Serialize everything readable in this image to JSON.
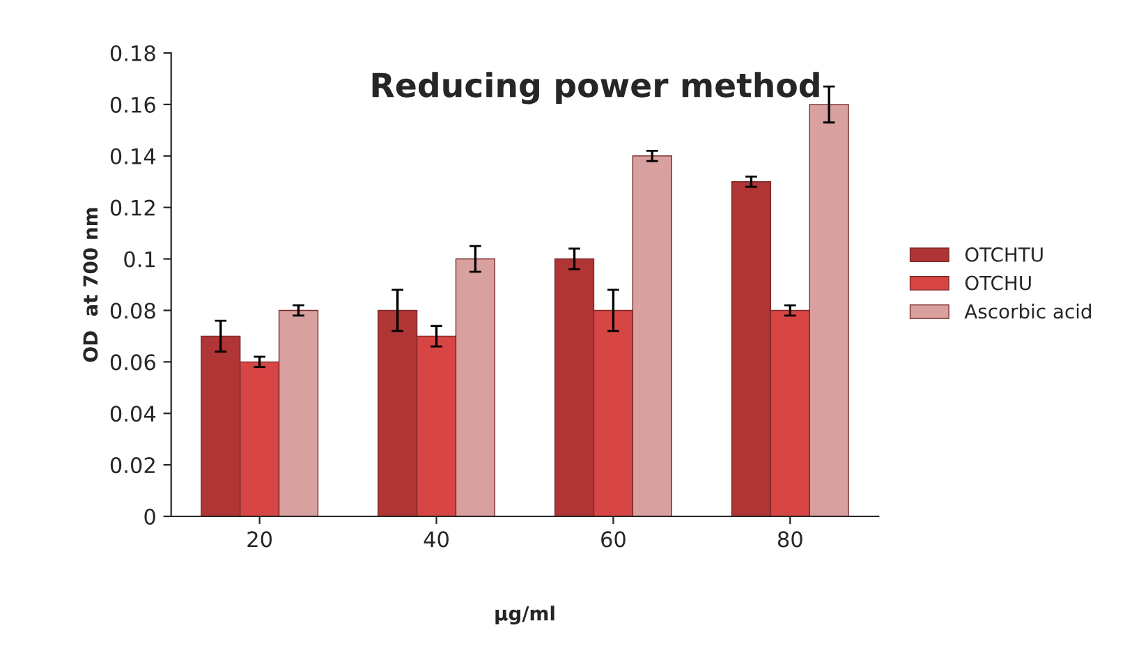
{
  "chart_data": {
    "type": "bar",
    "title": "Reducing power method",
    "xlabel": "µg/ml",
    "ylabel": "OD  at 700 nm",
    "categories": [
      "20",
      "40",
      "60",
      "80"
    ],
    "series": [
      {
        "name": "OTCHTU",
        "color": "#b03535",
        "values": [
          0.07,
          0.08,
          0.1,
          0.13
        ],
        "errors": [
          0.006,
          0.008,
          0.004,
          0.002
        ]
      },
      {
        "name": "OTCHU",
        "color": "#d84545",
        "values": [
          0.06,
          0.07,
          0.08,
          0.08
        ],
        "errors": [
          0.002,
          0.004,
          0.008,
          0.002
        ]
      },
      {
        "name": "Ascorbic acid",
        "color": "#d9a0a0",
        "values": [
          0.08,
          0.1,
          0.14,
          0.16
        ],
        "errors": [
          0.002,
          0.005,
          0.002,
          0.007
        ]
      }
    ],
    "ylim": [
      0,
      0.18
    ],
    "yticks": [
      0,
      0.02,
      0.04,
      0.06,
      0.08,
      {
        "value": 0.1,
        "label": "0.1"
      },
      0.12,
      0.14,
      0.16,
      0.18
    ],
    "grid": false,
    "legend": "right"
  }
}
